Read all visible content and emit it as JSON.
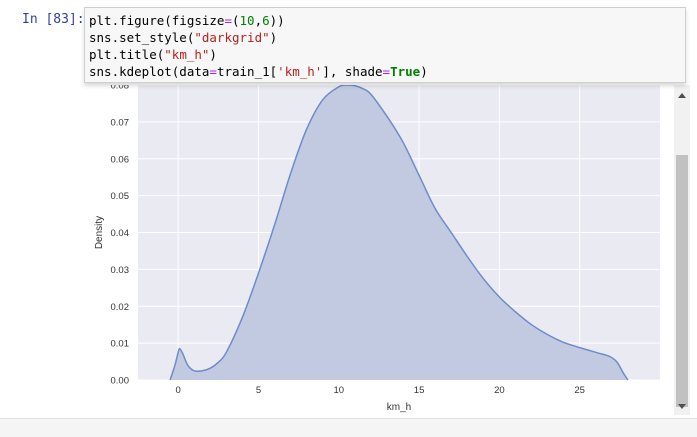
{
  "cell": {
    "prompt": "In [83]:",
    "code_lines": [
      "plt.figure(figsize=(10,6))",
      "sns.set_style(\"darkgrid\")",
      "plt.title(\"km_h\")",
      "sns.kdeplot(data=train_1['km_h'], shade=True)"
    ]
  },
  "colors": {
    "axes_bg": "#eaeaf2",
    "grid": "#ffffff",
    "fill": "#c0c8e0",
    "line": "#6f8bc8",
    "prompt": "#303f9f"
  },
  "chart_data": {
    "type": "area",
    "title": "",
    "xlabel": "km_h",
    "ylabel": "Density",
    "xlim": [
      -2.5,
      30
    ],
    "ylim": [
      0,
      0.08
    ],
    "xticks": [
      0,
      5,
      10,
      15,
      20,
      25
    ],
    "xtick_labels": [
      "0",
      "5",
      "10",
      "15",
      "20",
      "25"
    ],
    "yticks": [
      0,
      0.01,
      0.02,
      0.03,
      0.04,
      0.05,
      0.06,
      0.07,
      0.08
    ],
    "ytick_labels": [
      "0.00",
      "0.01",
      "0.02",
      "0.03",
      "0.04",
      "0.05",
      "0.06",
      "0.07",
      "0.08"
    ],
    "grid": true,
    "series": [
      {
        "x": [
          -0.5,
          -0.2,
          0,
          0.1,
          0.3,
          0.6,
          1,
          1.5,
          2,
          2.5,
          3,
          4,
          5,
          6,
          7,
          8,
          9,
          10,
          10.5,
          11,
          11.5,
          12,
          13,
          14,
          15,
          16,
          17,
          18,
          19,
          20,
          21,
          22,
          23,
          24,
          25,
          26,
          26.8,
          27.3,
          27.7,
          28
        ],
        "y": [
          0.0,
          0.004,
          0.0075,
          0.0085,
          0.007,
          0.004,
          0.0025,
          0.0025,
          0.0032,
          0.0048,
          0.0075,
          0.017,
          0.029,
          0.042,
          0.056,
          0.068,
          0.076,
          0.0795,
          0.08,
          0.0798,
          0.079,
          0.0775,
          0.0715,
          0.0645,
          0.0555,
          0.0465,
          0.04,
          0.0335,
          0.0275,
          0.0225,
          0.0185,
          0.015,
          0.0123,
          0.0102,
          0.0088,
          0.0075,
          0.0065,
          0.005,
          0.002,
          0.0
        ]
      }
    ]
  }
}
